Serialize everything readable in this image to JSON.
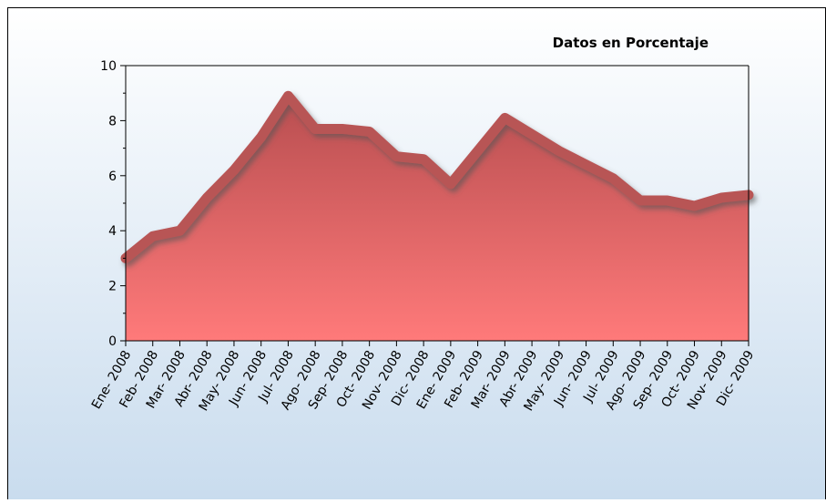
{
  "chart_data": {
    "type": "area",
    "title": "Datos en Porcentaje",
    "categories": [
      "Ene- 2008",
      "Feb- 2008",
      "Mar- 2008",
      "Abr- 2008",
      "May- 2008",
      "Jun- 2008",
      "Jul- 2008",
      "Ago- 2008",
      "Sep- 2008",
      "Oct- 2008",
      "Nov- 2008",
      "Dic- 2008",
      "Ene- 2009",
      "Feb- 2009",
      "Mar- 2009",
      "Abr- 2009",
      "May- 2009",
      "Jun- 2009",
      "Jul- 2009",
      "Ago- 2009",
      "Sep- 2009",
      "Oct- 2009",
      "Nov- 2009",
      "Dic- 2009"
    ],
    "values": [
      3.0,
      3.8,
      4.0,
      5.2,
      6.2,
      7.4,
      8.9,
      7.7,
      7.7,
      7.6,
      6.7,
      6.6,
      5.7,
      6.9,
      8.1,
      7.5,
      6.9,
      6.4,
      5.9,
      5.1,
      5.1,
      4.9,
      5.2,
      5.3
    ],
    "color": "#b85555",
    "ylim": [
      0,
      10
    ],
    "yticks": [
      0,
      2,
      4,
      6,
      8,
      10
    ],
    "grid": false
  }
}
